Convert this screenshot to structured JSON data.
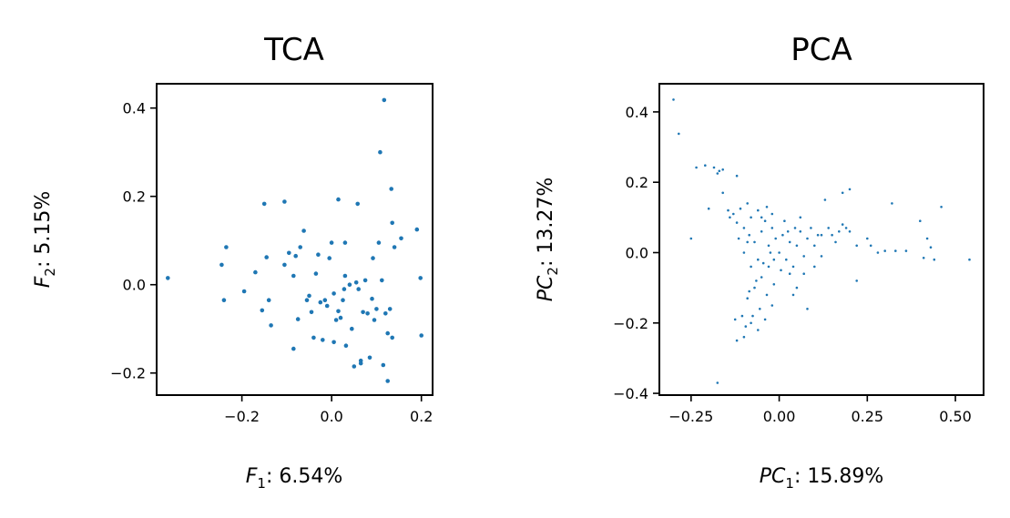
{
  "chart_data": [
    {
      "type": "scatter",
      "title": "TCA",
      "xlabel": {
        "sym": "F",
        "sub": "1",
        "text": ": 6.54%"
      },
      "ylabel": {
        "sym": "F",
        "sub": "2",
        "text": ": 5.15%"
      },
      "xlim": [
        -0.39,
        0.225
      ],
      "ylim": [
        -0.25,
        0.455
      ],
      "xticks": [
        -0.2,
        0.0,
        0.2
      ],
      "xtick_labels": [
        "−0.2",
        "0.0",
        "0.2"
      ],
      "yticks": [
        -0.2,
        0.0,
        0.2,
        0.4
      ],
      "ytick_labels": [
        "−0.2",
        "0.0",
        "0.2",
        "0.4"
      ],
      "color": "#1f77b4",
      "point_radius": 2.3,
      "grid": false,
      "series": [
        {
          "points": [
            [
              -0.365,
              0.015
            ],
            [
              -0.245,
              0.045
            ],
            [
              -0.235,
              0.085
            ],
            [
              -0.24,
              -0.035
            ],
            [
              -0.195,
              -0.015
            ],
            [
              -0.17,
              0.028
            ],
            [
              -0.155,
              -0.058
            ],
            [
              -0.145,
              0.062
            ],
            [
              -0.14,
              -0.035
            ],
            [
              -0.135,
              -0.092
            ],
            [
              -0.15,
              0.183
            ],
            [
              -0.105,
              0.188
            ],
            [
              -0.105,
              0.045
            ],
            [
              -0.095,
              0.072
            ],
            [
              -0.085,
              0.02
            ],
            [
              -0.08,
              0.065
            ],
            [
              -0.075,
              -0.078
            ],
            [
              -0.07,
              0.085
            ],
            [
              -0.085,
              -0.145
            ],
            [
              -0.062,
              0.122
            ],
            [
              -0.055,
              -0.035
            ],
            [
              -0.05,
              -0.025
            ],
            [
              -0.045,
              -0.062
            ],
            [
              -0.04,
              -0.12
            ],
            [
              -0.035,
              0.025
            ],
            [
              -0.03,
              0.068
            ],
            [
              -0.025,
              -0.04
            ],
            [
              -0.02,
              -0.125
            ],
            [
              -0.015,
              -0.035
            ],
            [
              -0.01,
              -0.048
            ],
            [
              -0.005,
              0.06
            ],
            [
              0.0,
              0.095
            ],
            [
              0.005,
              -0.13
            ],
            [
              0.005,
              -0.02
            ],
            [
              0.01,
              -0.08
            ],
            [
              0.015,
              -0.06
            ],
            [
              0.015,
              0.193
            ],
            [
              0.02,
              -0.075
            ],
            [
              0.025,
              -0.035
            ],
            [
              0.028,
              -0.01
            ],
            [
              0.03,
              0.02
            ],
            [
              0.03,
              0.095
            ],
            [
              0.032,
              -0.138
            ],
            [
              0.04,
              0.0
            ],
            [
              0.045,
              -0.1
            ],
            [
              0.05,
              -0.185
            ],
            [
              0.055,
              0.005
            ],
            [
              0.058,
              0.183
            ],
            [
              0.06,
              -0.01
            ],
            [
              0.065,
              -0.178
            ],
            [
              0.065,
              -0.172
            ],
            [
              0.07,
              -0.062
            ],
            [
              0.075,
              0.01
            ],
            [
              0.08,
              -0.065
            ],
            [
              0.085,
              -0.165
            ],
            [
              0.09,
              -0.032
            ],
            [
              0.092,
              0.06
            ],
            [
              0.095,
              -0.08
            ],
            [
              0.1,
              -0.055
            ],
            [
              0.105,
              0.095
            ],
            [
              0.108,
              0.3
            ],
            [
              0.112,
              0.01
            ],
            [
              0.115,
              -0.182
            ],
            [
              0.117,
              0.418
            ],
            [
              0.12,
              -0.065
            ],
            [
              0.125,
              -0.11
            ],
            [
              0.125,
              -0.218
            ],
            [
              0.13,
              -0.055
            ],
            [
              0.133,
              0.217
            ],
            [
              0.135,
              0.14
            ],
            [
              0.135,
              -0.12
            ],
            [
              0.14,
              0.085
            ],
            [
              0.155,
              0.105
            ],
            [
              0.19,
              0.125
            ],
            [
              0.198,
              0.015
            ],
            [
              0.2,
              -0.115
            ]
          ]
        }
      ]
    },
    {
      "type": "scatter",
      "title": "PCA",
      "xlabel": {
        "sym": "PC",
        "sub": "1",
        "text": ": 15.89%"
      },
      "ylabel": {
        "sym": "PC",
        "sub": "2",
        "text": ": 13.27%"
      },
      "xlim": [
        -0.34,
        0.58
      ],
      "ylim": [
        -0.405,
        0.48
      ],
      "xticks": [
        -0.25,
        0.0,
        0.25,
        0.5
      ],
      "xtick_labels": [
        "−0.25",
        "0.00",
        "0.25",
        "0.50"
      ],
      "yticks": [
        -0.4,
        -0.2,
        0.0,
        0.2,
        0.4
      ],
      "ytick_labels": [
        "−0.4",
        "−0.2",
        "0.0",
        "0.2",
        "0.4"
      ],
      "color": "#1f77b4",
      "point_radius": 1.3,
      "grid": false,
      "series": [
        {
          "points": [
            [
              -0.3,
              0.435
            ],
            [
              -0.285,
              0.338
            ],
            [
              -0.235,
              0.242
            ],
            [
              -0.21,
              0.248
            ],
            [
              -0.185,
              0.242
            ],
            [
              -0.175,
              0.225
            ],
            [
              -0.17,
              0.232
            ],
            [
              -0.16,
              0.236
            ],
            [
              -0.12,
              0.218
            ],
            [
              -0.25,
              0.04
            ],
            [
              -0.2,
              0.125
            ],
            [
              -0.175,
              -0.37
            ],
            [
              -0.16,
              0.17
            ],
            [
              -0.145,
              0.12
            ],
            [
              -0.14,
              0.1
            ],
            [
              -0.13,
              0.11
            ],
            [
              -0.12,
              0.085
            ],
            [
              -0.11,
              0.125
            ],
            [
              -0.1,
              0.07
            ],
            [
              -0.09,
              0.14
            ],
            [
              -0.085,
              0.05
            ],
            [
              -0.08,
              0.1
            ],
            [
              -0.07,
              0.03
            ],
            [
              -0.06,
              0.12
            ],
            [
              -0.05,
              0.06
            ],
            [
              -0.04,
              0.09
            ],
            [
              -0.03,
              0.02
            ],
            [
              -0.02,
              0.07
            ],
            [
              -0.01,
              0.04
            ],
            [
              0.0,
              0.0
            ],
            [
              0.01,
              0.05
            ],
            [
              0.02,
              -0.02
            ],
            [
              0.03,
              0.03
            ],
            [
              0.04,
              -0.04
            ],
            [
              0.05,
              0.02
            ],
            [
              0.06,
              0.06
            ],
            [
              0.07,
              -0.01
            ],
            [
              0.08,
              0.04
            ],
            [
              0.1,
              0.02
            ],
            [
              0.12,
              0.05
            ],
            [
              0.14,
              0.07
            ],
            [
              0.16,
              0.03
            ],
            [
              0.18,
              0.08
            ],
            [
              0.2,
              0.06
            ],
            [
              0.22,
              0.02
            ],
            [
              0.25,
              0.04
            ],
            [
              0.28,
              0.0
            ],
            [
              0.32,
              0.14
            ],
            [
              0.36,
              0.005
            ],
            [
              0.4,
              0.09
            ],
            [
              0.42,
              0.04
            ],
            [
              0.44,
              -0.02
            ],
            [
              0.46,
              0.13
            ],
            [
              0.54,
              -0.02
            ],
            [
              0.2,
              0.18
            ],
            [
              0.18,
              0.17
            ],
            [
              0.13,
              0.15
            ],
            [
              0.22,
              -0.08
            ],
            [
              0.08,
              -0.16
            ],
            [
              0.05,
              -0.1
            ],
            [
              0.04,
              -0.12
            ],
            [
              0.03,
              -0.06
            ],
            [
              -0.02,
              -0.15
            ],
            [
              -0.04,
              -0.19
            ],
            [
              -0.06,
              -0.22
            ],
            [
              -0.08,
              -0.2
            ],
            [
              -0.1,
              -0.24
            ],
            [
              -0.12,
              -0.25
            ],
            [
              -0.125,
              -0.19
            ],
            [
              -0.09,
              -0.13
            ],
            [
              -0.07,
              -0.1
            ],
            [
              -0.05,
              -0.07
            ],
            [
              -0.03,
              -0.04
            ],
            [
              -0.015,
              -0.02
            ],
            [
              0.005,
              -0.05
            ],
            [
              -0.08,
              -0.04
            ],
            [
              -0.1,
              0.0
            ],
            [
              -0.115,
              0.04
            ],
            [
              -0.09,
              0.03
            ],
            [
              -0.06,
              -0.02
            ],
            [
              -0.05,
              0.1
            ],
            [
              -0.035,
              0.13
            ],
            [
              -0.02,
              0.11
            ],
            [
              0.015,
              0.09
            ],
            [
              0.025,
              0.06
            ],
            [
              0.045,
              0.07
            ],
            [
              0.06,
              0.1
            ],
            [
              0.09,
              0.07
            ],
            [
              0.11,
              0.05
            ],
            [
              0.15,
              0.05
            ],
            [
              0.17,
              0.06
            ],
            [
              0.19,
              0.07
            ],
            [
              0.26,
              0.02
            ],
            [
              0.3,
              0.005
            ],
            [
              0.33,
              0.005
            ],
            [
              0.43,
              0.015
            ],
            [
              0.41,
              -0.015
            ],
            [
              0.12,
              -0.01
            ],
            [
              0.1,
              -0.04
            ],
            [
              0.07,
              -0.06
            ],
            [
              -0.015,
              -0.09
            ],
            [
              -0.035,
              -0.12
            ],
            [
              -0.055,
              -0.16
            ],
            [
              -0.075,
              -0.18
            ],
            [
              -0.095,
              -0.21
            ],
            [
              -0.105,
              -0.18
            ],
            [
              -0.085,
              -0.11
            ],
            [
              -0.065,
              -0.08
            ],
            [
              -0.045,
              -0.03
            ],
            [
              -0.025,
              0.0
            ]
          ]
        }
      ]
    }
  ]
}
